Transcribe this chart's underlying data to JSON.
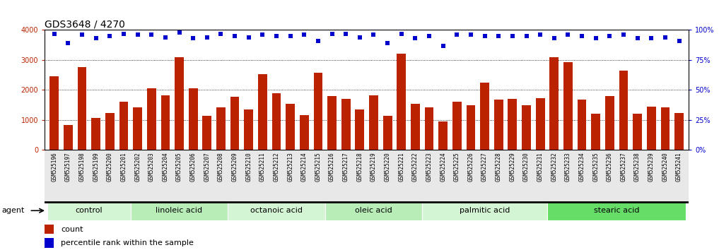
{
  "title": "GDS3648 / 4270",
  "samples": [
    "GSM525196",
    "GSM525197",
    "GSM525198",
    "GSM525199",
    "GSM525200",
    "GSM525201",
    "GSM525202",
    "GSM525203",
    "GSM525204",
    "GSM525205",
    "GSM525206",
    "GSM525207",
    "GSM525208",
    "GSM525209",
    "GSM525210",
    "GSM525211",
    "GSM525212",
    "GSM525213",
    "GSM525214",
    "GSM525215",
    "GSM525216",
    "GSM525217",
    "GSM525218",
    "GSM525219",
    "GSM525220",
    "GSM525221",
    "GSM525222",
    "GSM525223",
    "GSM525224",
    "GSM525225",
    "GSM525226",
    "GSM525227",
    "GSM525228",
    "GSM525229",
    "GSM525230",
    "GSM525231",
    "GSM525232",
    "GSM525233",
    "GSM525234",
    "GSM525235",
    "GSM525236",
    "GSM525237",
    "GSM525238",
    "GSM525239",
    "GSM525240",
    "GSM525241"
  ],
  "counts": [
    2450,
    830,
    2760,
    1060,
    1240,
    1620,
    1430,
    2060,
    1820,
    3100,
    2060,
    1130,
    1430,
    1780,
    1350,
    2520,
    1900,
    1550,
    1160,
    2570,
    1790,
    1700,
    1340,
    1830,
    1130,
    3200,
    1530,
    1430,
    950,
    1620,
    1490,
    2240,
    1680,
    1710,
    1490,
    1720,
    3100,
    2940,
    1680,
    1210,
    1800,
    2640,
    1220,
    1450,
    1430,
    1230
  ],
  "percentile_ranks": [
    97,
    89,
    96,
    93,
    95,
    97,
    96,
    96,
    94,
    98,
    93,
    94,
    97,
    95,
    94,
    96,
    95,
    95,
    96,
    91,
    97,
    97,
    94,
    96,
    89,
    97,
    93,
    95,
    87,
    96,
    96,
    95,
    95,
    95,
    95,
    96,
    93,
    96,
    95,
    93,
    95,
    96,
    93,
    93,
    94,
    91
  ],
  "groups": [
    {
      "label": "control",
      "start": 0,
      "end": 6,
      "color": "#d4f5d4"
    },
    {
      "label": "linoleic acid",
      "start": 6,
      "end": 13,
      "color": "#b8edb8"
    },
    {
      "label": "octanoic acid",
      "start": 13,
      "end": 20,
      "color": "#d4f5d4"
    },
    {
      "label": "oleic acid",
      "start": 20,
      "end": 27,
      "color": "#b8edb8"
    },
    {
      "label": "palmitic acid",
      "start": 27,
      "end": 36,
      "color": "#d4f5d4"
    },
    {
      "label": "stearic acid",
      "start": 36,
      "end": 46,
      "color": "#66dd66"
    }
  ],
  "bar_color": "#bb2200",
  "dot_color": "#0000cc",
  "ylim_left": [
    0,
    4000
  ],
  "ylim_right": [
    0,
    100
  ],
  "yticks_left": [
    0,
    1000,
    2000,
    3000,
    4000
  ],
  "yticks_right": [
    0,
    25,
    50,
    75,
    100
  ],
  "title_fontsize": 10,
  "tick_fontsize": 5.5,
  "group_label_fontsize": 8,
  "legend_fontsize": 8
}
